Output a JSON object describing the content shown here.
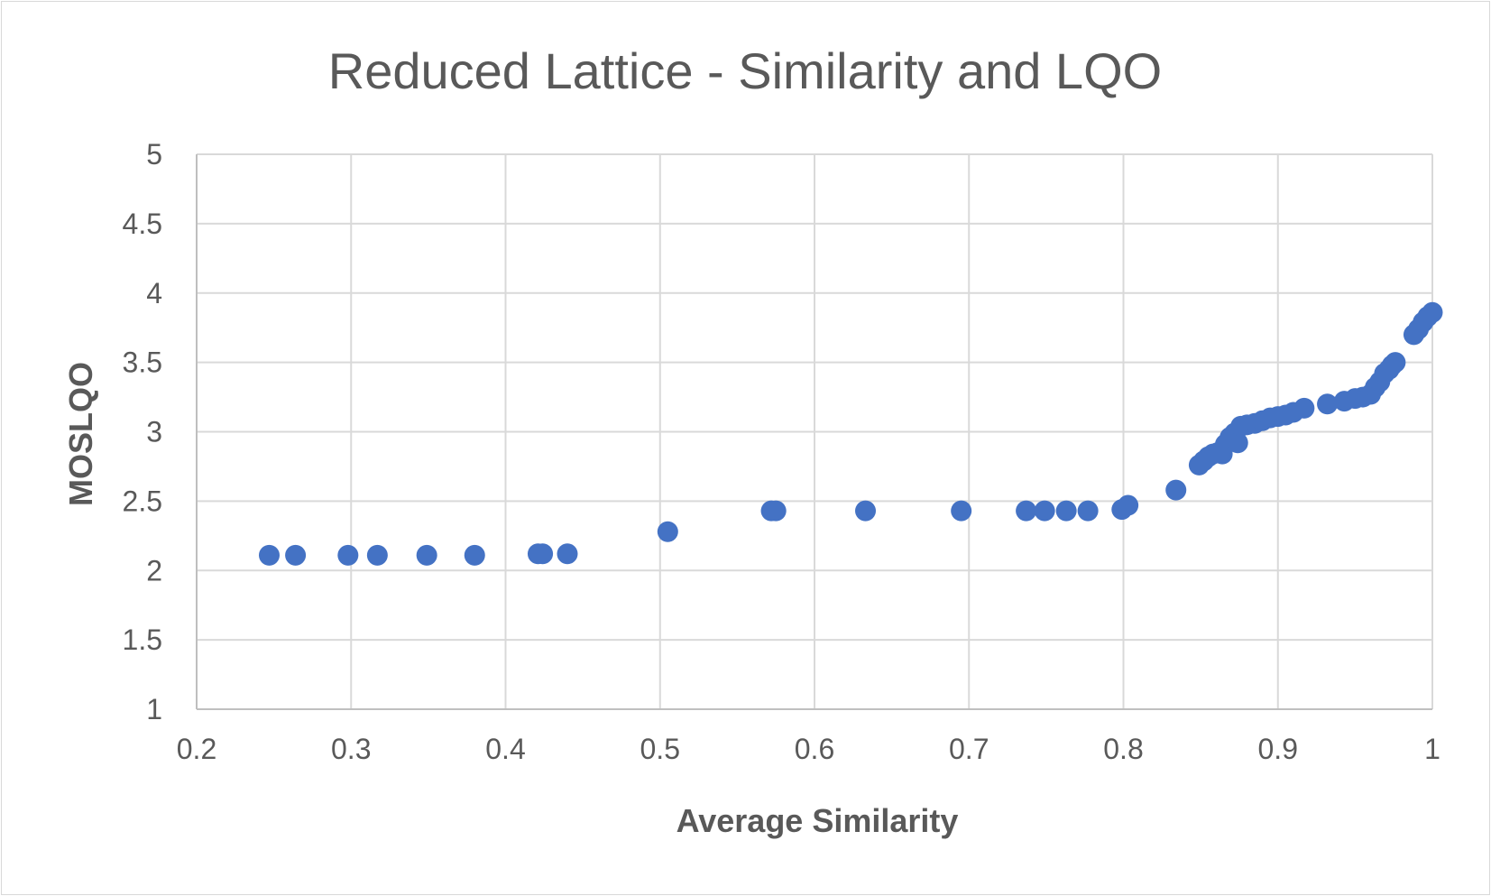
{
  "chart_data": {
    "type": "scatter",
    "title": "Reduced Lattice - Similarity and LQO",
    "xlabel": "Average Similarity",
    "ylabel": "MOSLQO",
    "xlim": [
      0.2,
      1.0
    ],
    "ylim": [
      1,
      5
    ],
    "x_ticks": [
      "0.2",
      "0.3",
      "0.4",
      "0.5",
      "0.6",
      "0.7",
      "0.8",
      "0.9",
      "1"
    ],
    "y_ticks": [
      "1",
      "1.5",
      "2",
      "2.5",
      "3",
      "3.5",
      "4",
      "4.5",
      "5"
    ],
    "grid": true,
    "legend": "none",
    "marker_color": "#4472c4",
    "series": [
      {
        "points": [
          [
            0.247,
            2.11
          ],
          [
            0.264,
            2.11
          ],
          [
            0.298,
            2.11
          ],
          [
            0.317,
            2.11
          ],
          [
            0.349,
            2.11
          ],
          [
            0.38,
            2.11
          ],
          [
            0.421,
            2.12
          ],
          [
            0.424,
            2.12
          ],
          [
            0.44,
            2.12
          ],
          [
            0.505,
            2.28
          ],
          [
            0.572,
            2.43
          ],
          [
            0.575,
            2.43
          ],
          [
            0.633,
            2.43
          ],
          [
            0.695,
            2.43
          ],
          [
            0.737,
            2.43
          ],
          [
            0.749,
            2.43
          ],
          [
            0.763,
            2.43
          ],
          [
            0.777,
            2.43
          ],
          [
            0.799,
            2.44
          ],
          [
            0.803,
            2.47
          ],
          [
            0.834,
            2.58
          ],
          [
            0.849,
            2.76
          ],
          [
            0.852,
            2.79
          ],
          [
            0.855,
            2.82
          ],
          [
            0.858,
            2.84
          ],
          [
            0.861,
            2.85
          ],
          [
            0.864,
            2.84
          ],
          [
            0.866,
            2.91
          ],
          [
            0.869,
            2.96
          ],
          [
            0.872,
            2.99
          ],
          [
            0.874,
            2.92
          ],
          [
            0.876,
            3.04
          ],
          [
            0.88,
            3.05
          ],
          [
            0.885,
            3.06
          ],
          [
            0.89,
            3.08
          ],
          [
            0.895,
            3.1
          ],
          [
            0.9,
            3.11
          ],
          [
            0.905,
            3.12
          ],
          [
            0.91,
            3.14
          ],
          [
            0.917,
            3.17
          ],
          [
            0.932,
            3.2
          ],
          [
            0.943,
            3.22
          ],
          [
            0.95,
            3.24
          ],
          [
            0.955,
            3.25
          ],
          [
            0.96,
            3.27
          ],
          [
            0.963,
            3.32
          ],
          [
            0.966,
            3.36
          ],
          [
            0.969,
            3.42
          ],
          [
            0.972,
            3.45
          ],
          [
            0.974,
            3.48
          ],
          [
            0.976,
            3.5
          ],
          [
            0.988,
            3.7
          ],
          [
            0.991,
            3.74
          ],
          [
            0.994,
            3.79
          ],
          [
            0.997,
            3.83
          ],
          [
            1.0,
            3.86
          ]
        ]
      }
    ]
  }
}
